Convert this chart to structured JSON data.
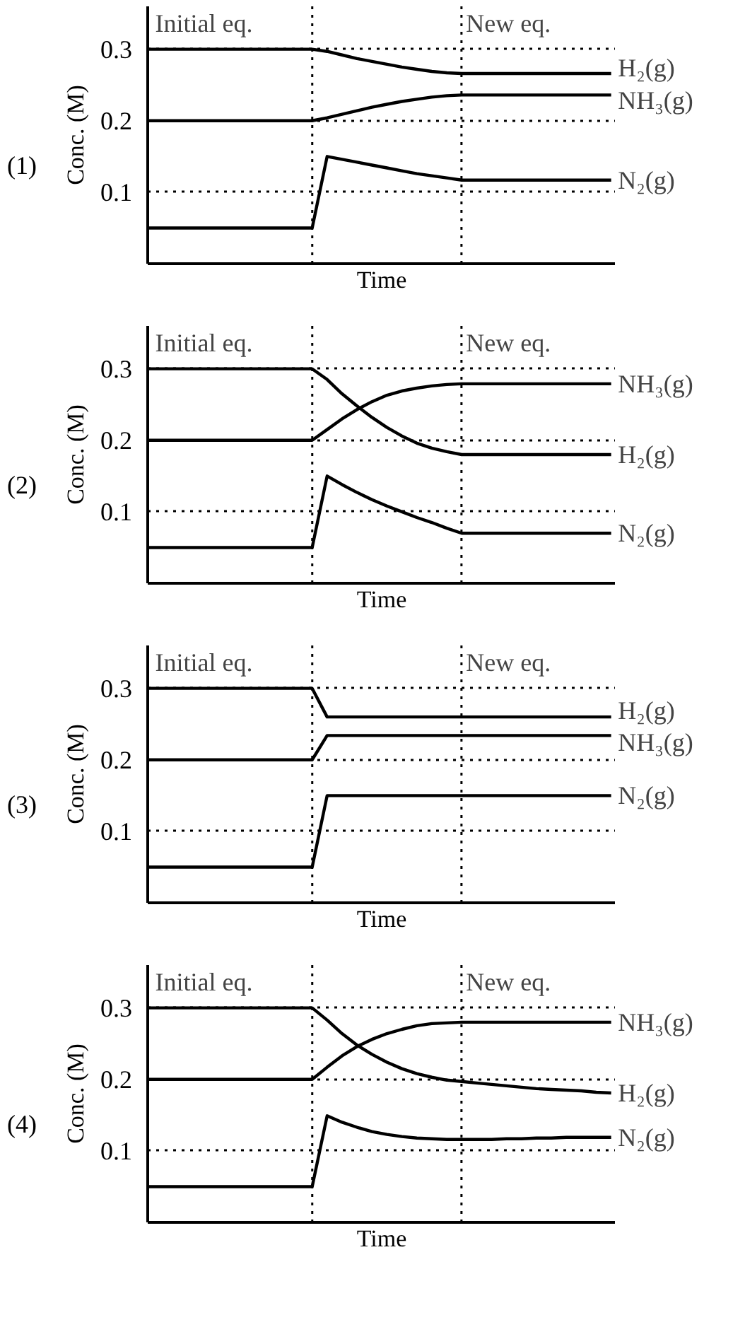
{
  "chart_data": [
    {
      "type": "line",
      "title": "(1)",
      "xlabel": "Time",
      "ylabel": "Conc. (M)",
      "categories": [
        null,
        null,
        null,
        null,
        null,
        null,
        null,
        null,
        null,
        null,
        null,
        null,
        null,
        null,
        null,
        null,
        null,
        null,
        null,
        null,
        null,
        null,
        null,
        null,
        null,
        null,
        null,
        null,
        null,
        null,
        null,
        null
      ],
      "ylim": [
        0,
        0.36
      ],
      "yticks": [
        0.1,
        0.2,
        0.3
      ],
      "grid": "y",
      "tick_labels": "y",
      "line_style": "solid",
      "series": [
        {
          "name": "H₂(g)",
          "color": "#000000",
          "values": [
            0.3,
            0.3,
            0.3,
            0.3,
            0.3,
            0.3,
            0.3,
            0.3,
            0.3,
            0.3,
            0.3,
            0.3,
            0.297,
            0.292,
            0.287,
            0.283,
            0.279,
            0.275,
            0.272,
            0.269,
            0.267,
            0.266,
            0.266,
            0.266,
            0.266,
            0.266,
            0.266,
            0.266,
            0.266,
            0.266,
            0.266,
            0.266
          ]
        },
        {
          "name": "NH₃(g)",
          "color": "#000000",
          "values": [
            0.2,
            0.2,
            0.2,
            0.2,
            0.2,
            0.2,
            0.2,
            0.2,
            0.2,
            0.2,
            0.2,
            0.2,
            0.204,
            0.209,
            0.214,
            0.219,
            0.223,
            0.227,
            0.23,
            0.233,
            0.235,
            0.236,
            0.236,
            0.236,
            0.236,
            0.236,
            0.236,
            0.236,
            0.236,
            0.236,
            0.236,
            0.236
          ]
        },
        {
          "name": "N₂(g)",
          "color": "#000000",
          "values": [
            0.05,
            0.05,
            0.05,
            0.05,
            0.05,
            0.05,
            0.05,
            0.05,
            0.05,
            0.05,
            0.05,
            0.05,
            0.15,
            0.146,
            0.142,
            0.138,
            0.134,
            0.13,
            0.126,
            0.123,
            0.12,
            0.117,
            0.117,
            0.117,
            0.117,
            0.117,
            0.117,
            0.117,
            0.117,
            0.117,
            0.117,
            0.117
          ]
        }
      ],
      "annotations": [
        "Initial eq.",
        "New eq."
      ]
    },
    {
      "type": "line",
      "title": "(2)",
      "xlabel": "Time",
      "ylabel": "Conc. (M)",
      "categories": [
        null,
        null,
        null,
        null,
        null,
        null,
        null,
        null,
        null,
        null,
        null,
        null,
        null,
        null,
        null,
        null,
        null,
        null,
        null,
        null,
        null,
        null,
        null,
        null,
        null,
        null,
        null,
        null,
        null,
        null,
        null,
        null
      ],
      "ylim": [
        0,
        0.36
      ],
      "yticks": [
        0.1,
        0.2,
        0.3
      ],
      "grid": "y",
      "tick_labels": "y",
      "line_style": "solid",
      "series": [
        {
          "name": "H₂(g)",
          "color": "#000000",
          "values": [
            0.3,
            0.3,
            0.3,
            0.3,
            0.3,
            0.3,
            0.3,
            0.3,
            0.3,
            0.3,
            0.3,
            0.3,
            0.285,
            0.265,
            0.248,
            0.232,
            0.218,
            0.206,
            0.196,
            0.189,
            0.184,
            0.18,
            0.18,
            0.18,
            0.18,
            0.18,
            0.18,
            0.18,
            0.18,
            0.18,
            0.18,
            0.18
          ]
        },
        {
          "name": "NH₃(g)",
          "color": "#000000",
          "values": [
            0.2,
            0.2,
            0.2,
            0.2,
            0.2,
            0.2,
            0.2,
            0.2,
            0.2,
            0.2,
            0.2,
            0.2,
            0.215,
            0.23,
            0.243,
            0.254,
            0.263,
            0.269,
            0.273,
            0.276,
            0.278,
            0.279,
            0.279,
            0.279,
            0.279,
            0.279,
            0.279,
            0.279,
            0.279,
            0.279,
            0.279,
            0.279
          ]
        },
        {
          "name": "N₂(g)",
          "color": "#000000",
          "values": [
            0.05,
            0.05,
            0.05,
            0.05,
            0.05,
            0.05,
            0.05,
            0.05,
            0.05,
            0.05,
            0.05,
            0.05,
            0.15,
            0.138,
            0.127,
            0.117,
            0.108,
            0.1,
            0.092,
            0.085,
            0.077,
            0.07,
            0.07,
            0.07,
            0.07,
            0.07,
            0.07,
            0.07,
            0.07,
            0.07,
            0.07,
            0.07
          ]
        }
      ],
      "annotations": [
        "Initial eq.",
        "New eq."
      ]
    },
    {
      "type": "line",
      "title": "(3)",
      "xlabel": "Time",
      "ylabel": "Conc. (M)",
      "categories": [
        null,
        null,
        null,
        null,
        null,
        null,
        null,
        null,
        null,
        null,
        null,
        null,
        null,
        null,
        null,
        null,
        null,
        null,
        null,
        null,
        null,
        null,
        null,
        null,
        null,
        null,
        null,
        null,
        null,
        null,
        null,
        null
      ],
      "ylim": [
        0,
        0.36
      ],
      "yticks": [
        0.1,
        0.2,
        0.3
      ],
      "grid": "y",
      "tick_labels": "y",
      "line_style": "solid",
      "series": [
        {
          "name": "H₂(g)",
          "color": "#000000",
          "values": [
            0.3,
            0.3,
            0.3,
            0.3,
            0.3,
            0.3,
            0.3,
            0.3,
            0.3,
            0.3,
            0.3,
            0.3,
            0.26,
            0.26,
            0.26,
            0.26,
            0.26,
            0.26,
            0.26,
            0.26,
            0.26,
            0.26,
            0.26,
            0.26,
            0.26,
            0.26,
            0.26,
            0.26,
            0.26,
            0.26,
            0.26,
            0.26
          ]
        },
        {
          "name": "NH₃(g)",
          "color": "#000000",
          "values": [
            0.2,
            0.2,
            0.2,
            0.2,
            0.2,
            0.2,
            0.2,
            0.2,
            0.2,
            0.2,
            0.2,
            0.2,
            0.234,
            0.234,
            0.234,
            0.234,
            0.234,
            0.234,
            0.234,
            0.234,
            0.234,
            0.234,
            0.234,
            0.234,
            0.234,
            0.234,
            0.234,
            0.234,
            0.234,
            0.234,
            0.234,
            0.234
          ]
        },
        {
          "name": "N₂(g)",
          "color": "#000000",
          "values": [
            0.05,
            0.05,
            0.05,
            0.05,
            0.05,
            0.05,
            0.05,
            0.05,
            0.05,
            0.05,
            0.05,
            0.05,
            0.15,
            0.15,
            0.15,
            0.15,
            0.15,
            0.15,
            0.15,
            0.15,
            0.15,
            0.15,
            0.15,
            0.15,
            0.15,
            0.15,
            0.15,
            0.15,
            0.15,
            0.15,
            0.15,
            0.15
          ]
        }
      ],
      "annotations": [
        "Initial eq.",
        "New eq."
      ]
    },
    {
      "type": "line",
      "title": "(4)",
      "xlabel": "Time",
      "ylabel": "Conc. (M)",
      "categories": [
        null,
        null,
        null,
        null,
        null,
        null,
        null,
        null,
        null,
        null,
        null,
        null,
        null,
        null,
        null,
        null,
        null,
        null,
        null,
        null,
        null,
        null,
        null,
        null,
        null,
        null,
        null,
        null,
        null,
        null,
        null,
        null
      ],
      "ylim": [
        0,
        0.36
      ],
      "yticks": [
        0.1,
        0.2,
        0.3
      ],
      "grid": "y",
      "tick_labels": "y",
      "line_style": "solid",
      "series": [
        {
          "name": "H₂(g)",
          "color": "#000000",
          "values": [
            0.3,
            0.3,
            0.3,
            0.3,
            0.3,
            0.3,
            0.3,
            0.3,
            0.3,
            0.3,
            0.3,
            0.3,
            0.283,
            0.264,
            0.248,
            0.235,
            0.224,
            0.215,
            0.208,
            0.203,
            0.199,
            0.197,
            0.195,
            0.193,
            0.191,
            0.189,
            0.187,
            0.186,
            0.185,
            0.184,
            0.182,
            0.181
          ]
        },
        {
          "name": "NH₃(g)",
          "color": "#000000",
          "values": [
            0.2,
            0.2,
            0.2,
            0.2,
            0.2,
            0.2,
            0.2,
            0.2,
            0.2,
            0.2,
            0.2,
            0.2,
            0.217,
            0.233,
            0.246,
            0.256,
            0.264,
            0.27,
            0.275,
            0.278,
            0.279,
            0.28,
            0.28,
            0.28,
            0.28,
            0.28,
            0.28,
            0.28,
            0.28,
            0.28,
            0.28,
            0.28
          ]
        },
        {
          "name": "N₂(g)",
          "color": "#000000",
          "values": [
            0.05,
            0.05,
            0.05,
            0.05,
            0.05,
            0.05,
            0.05,
            0.05,
            0.05,
            0.05,
            0.05,
            0.05,
            0.149,
            0.14,
            0.133,
            0.127,
            0.123,
            0.12,
            0.118,
            0.117,
            0.116,
            0.116,
            0.116,
            0.116,
            0.117,
            0.117,
            0.118,
            0.118,
            0.119,
            0.119,
            0.119,
            0.119
          ]
        }
      ],
      "annotations": [
        "Initial eq.",
        "New eq."
      ]
    }
  ]
}
